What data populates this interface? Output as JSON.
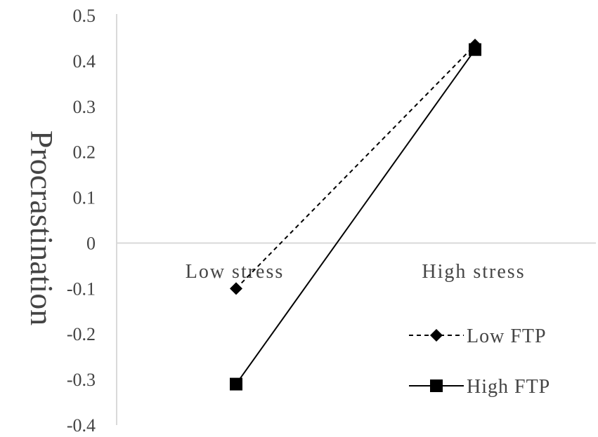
{
  "chart_data": {
    "type": "line",
    "title": "",
    "xlabel": "",
    "ylabel": "Procrastination",
    "categories": [
      "Low stress",
      "High stress"
    ],
    "ylim": [
      -0.4,
      0.5
    ],
    "yticks": [
      "0.5",
      "0.4",
      "0.3",
      "0.2",
      "0.1",
      "0",
      "-0.1",
      "-0.2",
      "-0.3",
      "-0.4"
    ],
    "grid": false,
    "legend_position": "bottom-right",
    "series": [
      {
        "name": "Low FTP",
        "values": [
          -0.1,
          0.435
        ],
        "style": "dashed",
        "marker": "diamond",
        "color": "#000000"
      },
      {
        "name": "High FTP",
        "values": [
          -0.31,
          0.425
        ],
        "style": "solid",
        "marker": "square",
        "color": "#000000"
      }
    ]
  }
}
